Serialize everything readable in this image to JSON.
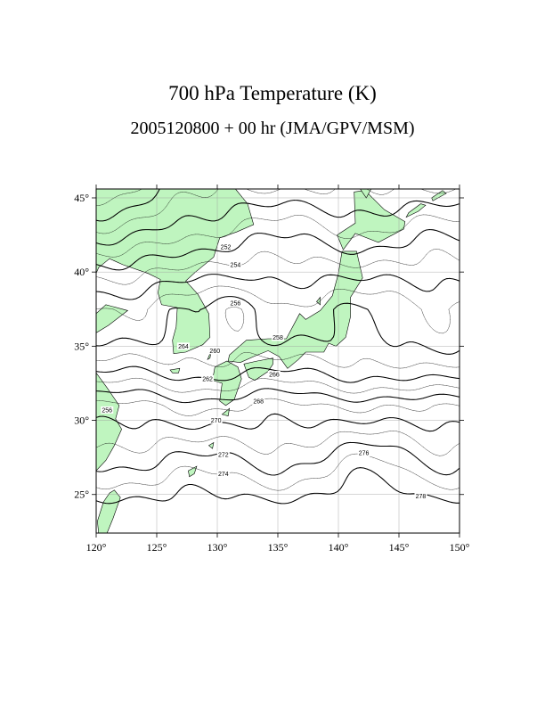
{
  "title": "700 hPa Temperature (K)",
  "subtitle": "2005120800 + 00 hr (JMA/GPV/MSM)",
  "colors": {
    "land": "#bff5bf",
    "coast": "#000000",
    "contour": "#000000",
    "grid": "#9a9a9a",
    "background": "#ffffff"
  },
  "map": {
    "type": "contour map",
    "variable": "700 hPa Temperature",
    "units": "K",
    "lon_range": [
      120,
      150
    ],
    "lat_range": [
      22.4,
      45.6
    ],
    "lon_ticks": [
      120,
      125,
      130,
      135,
      140,
      145,
      150
    ],
    "lat_ticks": [
      25,
      30,
      35,
      40,
      45
    ],
    "lon_tick_labels": [
      "120°",
      "125°",
      "130°",
      "135°",
      "140°",
      "145°",
      "150°"
    ],
    "lat_tick_labels": [
      "25°",
      "30°",
      "35°",
      "40°",
      "45°"
    ],
    "grid": true,
    "contour_labels": [
      {
        "text": "252",
        "lon": 130.7,
        "lat": 41.7
      },
      {
        "text": "254",
        "lon": 131.5,
        "lat": 40.5
      },
      {
        "text": "256",
        "lon": 131.5,
        "lat": 37.9
      },
      {
        "text": "258",
        "lon": 135.0,
        "lat": 35.6
      },
      {
        "text": "260",
        "lon": 129.8,
        "lat": 34.7
      },
      {
        "text": "262",
        "lon": 129.2,
        "lat": 32.8
      },
      {
        "text": "264",
        "lon": 127.2,
        "lat": 35.0
      },
      {
        "text": "266",
        "lon": 134.7,
        "lat": 33.1
      },
      {
        "text": "268",
        "lon": 133.4,
        "lat": 31.3
      },
      {
        "text": "270",
        "lon": 129.9,
        "lat": 30.0
      },
      {
        "text": "272",
        "lon": 130.5,
        "lat": 27.7
      },
      {
        "text": "274",
        "lon": 130.5,
        "lat": 26.4
      },
      {
        "text": "276",
        "lon": 142.1,
        "lat": 27.8
      },
      {
        "text": "278",
        "lon": 146.8,
        "lat": 24.9
      },
      {
        "text": "256",
        "lon": 120.9,
        "lat": 30.7
      }
    ]
  }
}
